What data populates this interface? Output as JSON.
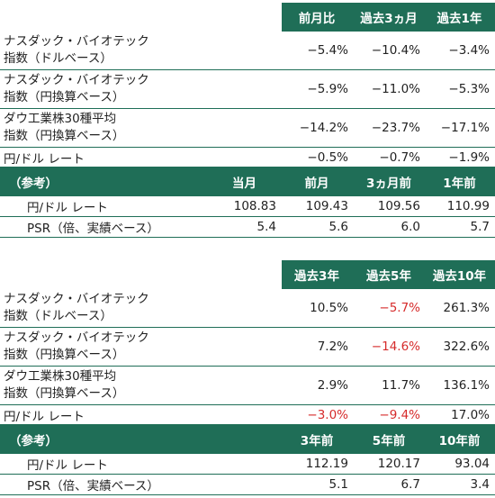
{
  "table1": {
    "headers": [
      "",
      "前月比",
      "過去3ヵ月",
      "過去1年"
    ],
    "rows": [
      {
        "label_line1": "ナスダック・バイオテック",
        "label_line2": "指数（ドルベース）",
        "values": [
          "−5.4%",
          "−10.4%",
          "−3.4%"
        ]
      },
      {
        "label_line1": "ナスダック・バイオテック",
        "label_line2": "指数（円換算ベース）",
        "values": [
          "−5.9%",
          "−11.0%",
          "−5.3%"
        ]
      },
      {
        "label_line1": "ダウ工業株30種平均",
        "label_line2": "指数（円換算ベース）",
        "values": [
          "−14.2%",
          "−23.7%",
          "−17.1%"
        ]
      },
      {
        "label_line1": "円/ドル レート",
        "label_line2": "",
        "values": [
          "−0.5%",
          "−0.7%",
          "−1.9%"
        ]
      }
    ],
    "ref_headers": [
      "（参考）",
      "当月",
      "前月",
      "3ヵ月前",
      "1年前"
    ],
    "ref_rows": [
      {
        "label": "円/ドル レート",
        "values": [
          "108.83",
          "109.43",
          "109.56",
          "110.99"
        ]
      },
      {
        "label": "PSR（倍、実績ベース）",
        "values": [
          "5.4",
          "5.6",
          "6.0",
          "5.7"
        ]
      }
    ]
  },
  "table2": {
    "headers": [
      "",
      "過去3年",
      "過去5年",
      "過去10年"
    ],
    "rows": [
      {
        "label_line1": "ナスダック・バイオテック",
        "label_line2": "指数（ドルベース）",
        "values": [
          "10.5%",
          "−5.7%",
          "261.3%"
        ],
        "red": [
          false,
          true,
          false
        ]
      },
      {
        "label_line1": "ナスダック・バイオテック",
        "label_line2": "指数（円換算ベース）",
        "values": [
          "7.2%",
          "−14.6%",
          "322.6%"
        ],
        "red": [
          false,
          true,
          false
        ]
      },
      {
        "label_line1": "ダウ工業株30種平均",
        "label_line2": "指数（円換算ベース）",
        "values": [
          "2.9%",
          "11.7%",
          "136.1%"
        ],
        "red": [
          false,
          false,
          false
        ]
      },
      {
        "label_line1": "円/ドル レート",
        "label_line2": "",
        "values": [
          "−3.0%",
          "−9.4%",
          "17.0%"
        ],
        "red": [
          true,
          true,
          false
        ]
      }
    ],
    "ref_headers": [
      "（参考）",
      "3年前",
      "5年前",
      "10年前"
    ],
    "ref_rows": [
      {
        "label": "円/ドル レート",
        "values": [
          "112.19",
          "120.17",
          "93.04"
        ]
      },
      {
        "label": "PSR（倍、実績ベース）",
        "values": [
          "5.1",
          "6.7",
          "3.4"
        ]
      }
    ]
  },
  "colors": {
    "header_bg": "#1f6e57",
    "negative_highlight": "#d62b2b"
  }
}
